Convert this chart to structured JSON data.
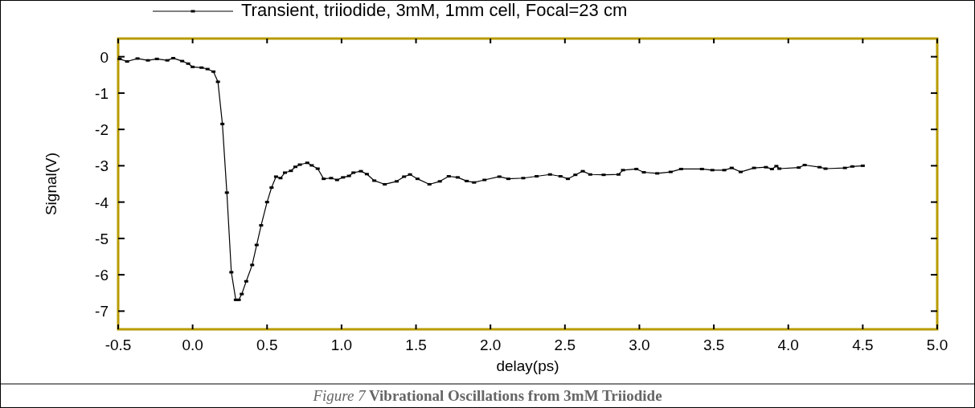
{
  "chart_data": {
    "type": "line",
    "xlabel": "delay(ps)",
    "ylabel": "Signal(V)",
    "annotations": [
      "Figure 7",
      "Vibrational Oscillations from 3mM Triiodide"
    ],
    "xlim": [
      -0.5,
      5.0
    ],
    "ylim": [
      -7.5,
      0.5
    ],
    "xticks": [
      {
        "value": -0.5,
        "label": "-0.5"
      },
      {
        "value": 0,
        "label": "0.0"
      },
      {
        "value": 0.5,
        "label": "0.5"
      },
      {
        "value": 1,
        "label": "1.0"
      },
      {
        "value": 1.5,
        "label": "1.5"
      },
      {
        "value": 2,
        "label": "2.0"
      },
      {
        "value": 2.5,
        "label": "2.5"
      },
      {
        "value": 3,
        "label": "3.0"
      },
      {
        "value": 3.5,
        "label": "3.5"
      },
      {
        "value": 4,
        "label": "4.0"
      },
      {
        "value": 4.5,
        "label": "4.5"
      },
      {
        "value": 5,
        "label": "5.0"
      }
    ],
    "yticks": [
      0,
      -1,
      -2,
      -3,
      -4,
      -5,
      -6,
      -7
    ],
    "legend": "top",
    "marker": "square",
    "line_style": "solid",
    "grid": false,
    "series": [
      {
        "name": "Transient, triiodide, 3mM, 1mm cell, Focal=23 cm",
        "color": "#000000",
        "x": [
          -0.49,
          -0.44,
          -0.37,
          -0.3,
          -0.24,
          -0.17,
          -0.13,
          -0.07,
          -0.03,
          0.0,
          0.06,
          0.1,
          0.14,
          0.17,
          0.2,
          0.23,
          0.26,
          0.29,
          0.31,
          0.33,
          0.36,
          0.4,
          0.43,
          0.46,
          0.5,
          0.53,
          0.56,
          0.59,
          0.62,
          0.66,
          0.69,
          0.72,
          0.77,
          0.8,
          0.84,
          0.88,
          0.93,
          0.97,
          1.01,
          1.05,
          1.08,
          1.13,
          1.17,
          1.22,
          1.29,
          1.37,
          1.42,
          1.46,
          1.51,
          1.59,
          1.66,
          1.72,
          1.78,
          1.84,
          1.89,
          1.96,
          2.06,
          2.12,
          2.22,
          2.31,
          2.4,
          2.47,
          2.52,
          2.57,
          2.62,
          2.67,
          2.76,
          2.86,
          2.89,
          2.98,
          3.03,
          3.12,
          3.21,
          3.28,
          3.42,
          3.49,
          3.57,
          3.62,
          3.68,
          3.77,
          3.85,
          3.89,
          3.92,
          3.94,
          4.07,
          4.11,
          4.21,
          4.25,
          4.38,
          4.43,
          4.5
        ],
        "values": [
          -0.06,
          -0.13,
          -0.05,
          -0.1,
          -0.06,
          -0.1,
          -0.04,
          -0.12,
          -0.19,
          -0.28,
          -0.3,
          -0.34,
          -0.41,
          -0.69,
          -1.85,
          -3.74,
          -5.93,
          -6.69,
          -6.69,
          -6.53,
          -6.18,
          -5.73,
          -5.18,
          -4.64,
          -4.0,
          -3.6,
          -3.3,
          -3.34,
          -3.19,
          -3.14,
          -3.03,
          -2.97,
          -2.92,
          -2.99,
          -3.08,
          -3.36,
          -3.34,
          -3.39,
          -3.32,
          -3.28,
          -3.19,
          -3.15,
          -3.23,
          -3.41,
          -3.51,
          -3.43,
          -3.3,
          -3.24,
          -3.36,
          -3.51,
          -3.43,
          -3.29,
          -3.32,
          -3.42,
          -3.46,
          -3.39,
          -3.3,
          -3.36,
          -3.34,
          -3.29,
          -3.24,
          -3.29,
          -3.36,
          -3.25,
          -3.15,
          -3.24,
          -3.25,
          -3.24,
          -3.12,
          -3.09,
          -3.18,
          -3.21,
          -3.17,
          -3.09,
          -3.09,
          -3.12,
          -3.12,
          -3.06,
          -3.17,
          -3.06,
          -3.04,
          -3.09,
          -3.01,
          -3.08,
          -3.05,
          -2.98,
          -3.04,
          -3.08,
          -3.06,
          -3.02,
          -3.0
        ]
      }
    ]
  }
}
